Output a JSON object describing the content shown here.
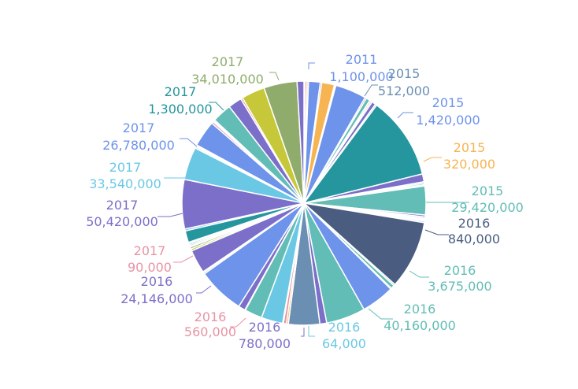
{
  "chart_data": {
    "type": "pie",
    "title": "",
    "legend": "none",
    "palette": {
      "blue": "#6e93ea",
      "purple": "#7b6fc9",
      "teal": "#62bdb6",
      "darkteal": "#25969e",
      "orange": "#f7b452",
      "olive": "#c6c83a",
      "green": "#8fac6c",
      "lightblue": "#6bc8e4",
      "pink": "#e893a4",
      "navy": "#4a5d80",
      "steel": "#6a8fb3"
    },
    "slices": [
      {
        "value": 1100000,
        "color": "blue",
        "name": "2011",
        "label": "1,100,000"
      },
      {
        "value": 2000000,
        "color": "pink"
      },
      {
        "value": 1500000,
        "color": "orange"
      },
      {
        "value": 12000000,
        "color": "blue"
      },
      {
        "value": 1500000,
        "color": "navy"
      },
      {
        "value": 13000000,
        "color": "orange"
      },
      {
        "value": 1000000,
        "color": "orange"
      },
      {
        "value": 512000,
        "color": "steel",
        "name": "2015",
        "label": "512,000"
      },
      {
        "value": 32000000,
        "color": "blue"
      },
      {
        "value": 1500000,
        "color": "navy"
      },
      {
        "value": 4000000,
        "color": "teal"
      },
      {
        "value": 1500000,
        "color": "orange"
      },
      {
        "value": 1420000,
        "color": "blue",
        "name": "2015",
        "label": "1,420,000"
      },
      {
        "value": 4000000,
        "color": "purple"
      },
      {
        "value": 1500000,
        "color": "teal"
      },
      {
        "value": 85000000,
        "color": "darkteal"
      },
      {
        "value": 8000000,
        "color": "purple"
      },
      {
        "value": 1500000,
        "color": "teal"
      },
      {
        "value": 1500000,
        "color": "darkteal"
      },
      {
        "value": 320000,
        "color": "orange",
        "name": "2015",
        "label": "320,000"
      },
      {
        "value": 1000000,
        "color": "orange"
      },
      {
        "value": 29420000,
        "color": "teal",
        "name": "2015",
        "label": "29,420,000"
      },
      {
        "value": 2000000,
        "color": "purple"
      },
      {
        "value": 1500000,
        "color": "blue"
      },
      {
        "value": 1000000,
        "color": "pink"
      },
      {
        "value": 840000,
        "color": "navy",
        "name": "2016",
        "label": "840,000"
      },
      {
        "value": 1000000,
        "color": "orange"
      },
      {
        "value": 1500000,
        "color": "blue"
      },
      {
        "value": 70000000,
        "color": "navy"
      },
      {
        "value": 1500000,
        "color": "teal"
      },
      {
        "value": 3675000,
        "color": "teal",
        "name": "2016",
        "label": "3,675,000"
      },
      {
        "value": 1000000,
        "color": "orange"
      },
      {
        "value": 34000000,
        "color": "blue"
      },
      {
        "value": 40160000,
        "color": "teal",
        "name": "2016",
        "label": "40,160,000"
      },
      {
        "value": 7000000,
        "color": "purple"
      },
      {
        "value": 32000000,
        "color": "steel"
      },
      {
        "value": 64000,
        "color": "lightblue",
        "name": "2016",
        "label": "64,000"
      },
      {
        "value": 2000000,
        "color": "orange"
      },
      {
        "value": 3000000,
        "color": "pink"
      },
      {
        "value": 780000,
        "color": "purple",
        "name": "2016",
        "label": "780,000"
      },
      {
        "value": 22000000,
        "color": "lightblue"
      },
      {
        "value": 18000000,
        "color": "teal"
      },
      {
        "value": 560000,
        "color": "pink",
        "name": "2016",
        "label": "560,000"
      },
      {
        "value": 7000000,
        "color": "purple"
      },
      {
        "value": 48000000,
        "color": "blue"
      },
      {
        "value": 1500000,
        "color": "teal"
      },
      {
        "value": 1000000,
        "color": "darkteal"
      },
      {
        "value": 24146000,
        "color": "purple",
        "name": "2016",
        "label": "24,146,000"
      },
      {
        "value": 2000000,
        "color": "olive"
      },
      {
        "value": 2000000,
        "color": "green"
      },
      {
        "value": 1000000,
        "color": "olive"
      },
      {
        "value": 1500000,
        "color": "teal"
      },
      {
        "value": 1500000,
        "color": "darkteal"
      },
      {
        "value": 90000,
        "color": "pink",
        "name": "2017",
        "label": "90,000"
      },
      {
        "value": 1000000,
        "color": "teal"
      },
      {
        "value": 12000000,
        "color": "darkteal"
      },
      {
        "value": 2000000,
        "color": "lightblue"
      },
      {
        "value": 50420000,
        "color": "purple",
        "name": "2017",
        "label": "50,420,000"
      },
      {
        "value": 33540000,
        "color": "lightblue",
        "name": "2017",
        "label": "33,540,000"
      },
      {
        "value": 1500000,
        "color": "olive"
      },
      {
        "value": 1000000,
        "color": "navy"
      },
      {
        "value": 1000000,
        "color": "pink"
      },
      {
        "value": 26780000,
        "color": "blue",
        "name": "2017",
        "label": "26,780,000"
      },
      {
        "value": 2000000,
        "color": "pink"
      },
      {
        "value": 1000000,
        "color": "orange"
      },
      {
        "value": 1300000,
        "color": "darkteal",
        "name": "2017",
        "label": "1,300,000"
      },
      {
        "value": 20000000,
        "color": "teal"
      },
      {
        "value": 14000000,
        "color": "purple"
      },
      {
        "value": 2000000,
        "color": "pink"
      },
      {
        "value": 24000000,
        "color": "olive"
      },
      {
        "value": 34010000,
        "color": "green",
        "name": "2017",
        "label": "34,010,000"
      },
      {
        "value": 7000000,
        "color": "purple"
      }
    ]
  }
}
